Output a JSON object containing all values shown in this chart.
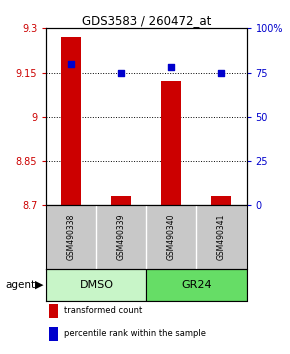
{
  "title": "GDS3583 / 260472_at",
  "samples": [
    "GSM490338",
    "GSM490339",
    "GSM490340",
    "GSM490341"
  ],
  "red_values": [
    9.27,
    8.73,
    9.12,
    8.73
  ],
  "blue_percentiles": [
    80,
    75,
    78,
    75
  ],
  "ylim_left": [
    8.7,
    9.3
  ],
  "ylim_right": [
    0,
    100
  ],
  "yticks_left": [
    8.7,
    8.85,
    9.0,
    9.15,
    9.3
  ],
  "yticks_right": [
    0,
    25,
    50,
    75,
    100
  ],
  "ytick_labels_left": [
    "8.7",
    "8.85",
    "9",
    "9.15",
    "9.3"
  ],
  "ytick_labels_right": [
    "0",
    "25",
    "50",
    "75",
    "100%"
  ],
  "groups": [
    {
      "label": "DMSO",
      "samples": [
        0,
        1
      ],
      "color": "#c8f5c8"
    },
    {
      "label": "GR24",
      "samples": [
        2,
        3
      ],
      "color": "#66dd66"
    }
  ],
  "bar_color": "#cc0000",
  "dot_color": "#0000cc",
  "bar_width": 0.4,
  "legend_items": [
    {
      "color": "#cc0000",
      "label": "transformed count"
    },
    {
      "color": "#0000cc",
      "label": "percentile rank within the sample"
    }
  ],
  "left_axis_color": "#cc0000",
  "right_axis_color": "#0000cc",
  "background_gray": "#c8c8c8"
}
